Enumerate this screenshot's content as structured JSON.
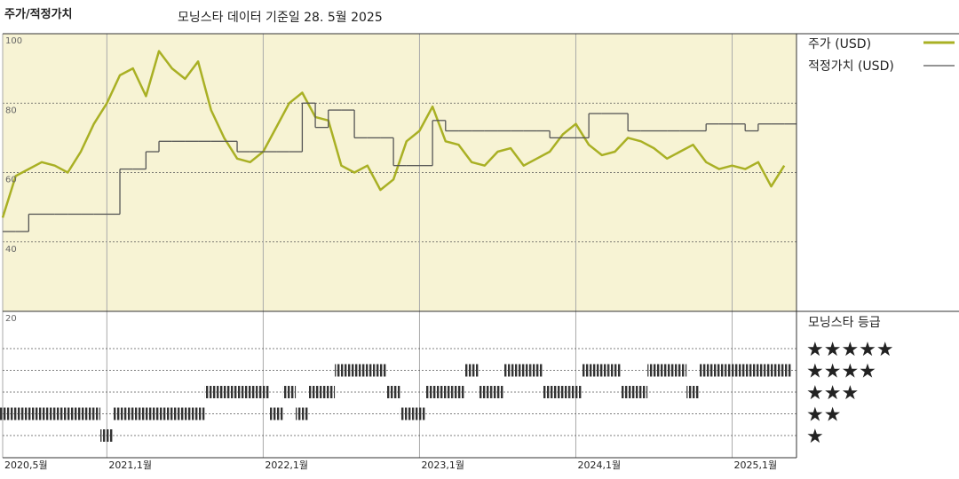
{
  "chart_data": {
    "type": "line",
    "title": "주가/적정가치",
    "subtitle": "모닝스타 데이터 기준일 28. 5월 2025",
    "x": [
      "2020-05",
      "2020-06",
      "2020-07",
      "2020-08",
      "2020-09",
      "2020-10",
      "2020-11",
      "2020-12",
      "2021-01",
      "2021-02",
      "2021-03",
      "2021-04",
      "2021-05",
      "2021-06",
      "2021-07",
      "2021-08",
      "2021-09",
      "2021-10",
      "2021-11",
      "2021-12",
      "2022-01",
      "2022-02",
      "2022-03",
      "2022-04",
      "2022-05",
      "2022-06",
      "2022-07",
      "2022-08",
      "2022-09",
      "2022-10",
      "2022-11",
      "2022-12",
      "2023-01",
      "2023-02",
      "2023-03",
      "2023-04",
      "2023-05",
      "2023-06",
      "2023-07",
      "2023-08",
      "2023-09",
      "2023-10",
      "2023-11",
      "2023-12",
      "2024-01",
      "2024-02",
      "2024-03",
      "2024-04",
      "2024-05",
      "2024-06",
      "2024-07",
      "2024-08",
      "2024-09",
      "2024-10",
      "2024-11",
      "2024-12",
      "2025-01",
      "2025-02",
      "2025-03",
      "2025-04",
      "2025-05"
    ],
    "xlim": [
      "2020-05",
      "2025-05"
    ],
    "xticks": [
      {
        "value": "2020-05",
        "label": "2020,5월"
      },
      {
        "value": "2021-01",
        "label": "2021,1월"
      },
      {
        "value": "2022-01",
        "label": "2022,1월"
      },
      {
        "value": "2023-01",
        "label": "2023,1월"
      },
      {
        "value": "2024-01",
        "label": "2024,1월"
      },
      {
        "value": "2025-01",
        "label": "2025,1월"
      }
    ],
    "ylim": [
      20,
      100
    ],
    "yticks": [
      20,
      40,
      60,
      80,
      100
    ],
    "grid": true,
    "series": [
      {
        "name": "주가 (USD)",
        "color": "#a9b024",
        "values": [
          47,
          59,
          61,
          63,
          62,
          60,
          66,
          74,
          80,
          88,
          90,
          82,
          95,
          90,
          87,
          92,
          78,
          70,
          64,
          63,
          66,
          73,
          80,
          83,
          76,
          75,
          62,
          60,
          62,
          55,
          58,
          69,
          72,
          79,
          69,
          68,
          63,
          62,
          66,
          67,
          62,
          64,
          66,
          71,
          74,
          68,
          65,
          66,
          70,
          69,
          67,
          64,
          66,
          68,
          63,
          61,
          62,
          61,
          63,
          56,
          62
        ]
      },
      {
        "name": "적정가치 (USD)",
        "color": "#555555",
        "step": true,
        "values": [
          43,
          43,
          48,
          48,
          48,
          48,
          48,
          48,
          48,
          61,
          61,
          66,
          69,
          69,
          69,
          69,
          69,
          69,
          66,
          66,
          66,
          66,
          66,
          80,
          73,
          78,
          78,
          70,
          70,
          70,
          62,
          62,
          62,
          75,
          72,
          72,
          72,
          72,
          72,
          72,
          72,
          72,
          70,
          70,
          70,
          77,
          77,
          77,
          72,
          72,
          72,
          72,
          72,
          72,
          74,
          74,
          74,
          72,
          74,
          74,
          74
        ]
      }
    ],
    "rating": {
      "title": "모닝스타 등급",
      "levels": [
        {
          "value": 5,
          "label": "★★★★★"
        },
        {
          "value": 4,
          "label": "★★★★"
        },
        {
          "value": 3,
          "label": "★★★"
        },
        {
          "value": 2,
          "label": "★★"
        },
        {
          "value": 1,
          "label": "★"
        }
      ],
      "color": "#333333",
      "values": [
        2,
        2,
        2,
        2,
        2,
        2,
        2,
        2,
        1,
        2,
        2,
        2,
        2,
        2,
        2,
        2,
        3,
        3,
        3,
        3,
        3,
        2,
        3,
        2,
        3,
        3,
        4,
        4,
        4,
        4,
        3,
        2,
        2,
        3,
        3,
        3,
        4,
        3,
        3,
        4,
        4,
        4,
        3,
        3,
        3,
        4,
        4,
        4,
        3,
        3,
        4,
        4,
        4,
        3,
        4,
        4,
        4,
        4,
        4,
        4,
        4
      ]
    }
  }
}
